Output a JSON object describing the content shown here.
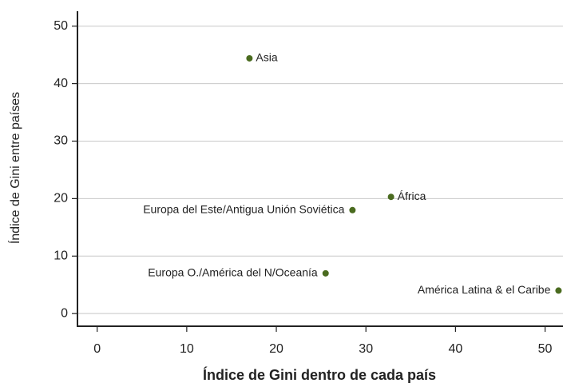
{
  "chart_data": {
    "type": "scatter",
    "xlabel": "Índice de Gini dentro de cada país",
    "ylabel": "Índice de Gini entre países",
    "labels": [
      "Asia",
      "África",
      "Europa del Este/Antigua Unión Soviética",
      "Europa O./América del N/Oceanía",
      "América Latina & el Caribe"
    ],
    "x": [
      17.0,
      32.8,
      28.5,
      25.5,
      51.5
    ],
    "values": [
      44.4,
      20.3,
      18.0,
      7.0,
      4.0
    ],
    "color": "#4a6b1f",
    "xlim": [
      -2.2,
      52
    ],
    "ylim": [
      -2.2,
      52.6
    ],
    "xticks": [
      0,
      10,
      20,
      30,
      40,
      50
    ],
    "yticks": [
      0,
      10,
      20,
      30,
      40,
      50
    ],
    "grid": true
  }
}
